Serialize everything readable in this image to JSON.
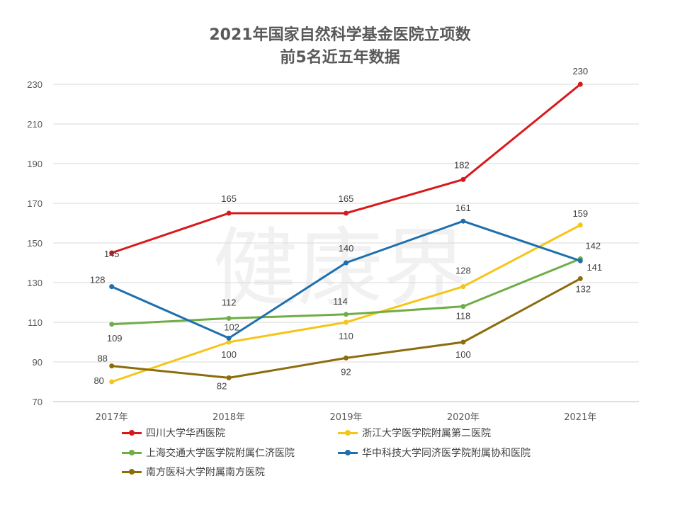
{
  "chart_data": {
    "type": "line",
    "title": [
      "2021年国家自然科学基金医院立项数",
      "前5名近五年数据"
    ],
    "watermark": "健康界",
    "categories": [
      "2017年",
      "2018年",
      "2019年",
      "2020年",
      "2021年"
    ],
    "ylim": [
      70,
      230
    ],
    "yticks": [
      70,
      90,
      110,
      130,
      150,
      170,
      190,
      210,
      230
    ],
    "grid": true,
    "legend_position": "bottom",
    "series": [
      {
        "name": "四川大学华西医院",
        "color": "#d7191c",
        "values": [
          145,
          165,
          165,
          182,
          230
        ]
      },
      {
        "name": "浙江大学医学院附属第二医院",
        "color": "#f5c518",
        "values": [
          80,
          100,
          110,
          128,
          159
        ]
      },
      {
        "name": "上海交通大学医学院附属仁济医院",
        "color": "#70ad47",
        "values": [
          109,
          112,
          114,
          118,
          142
        ]
      },
      {
        "name": "华中科技大学同济医学院附属协和医院",
        "color": "#1f6fad",
        "values": [
          128,
          102,
          140,
          161,
          141
        ]
      },
      {
        "name": "南方医科大学附属南方医院",
        "color": "#8c6d0c",
        "values": [
          88,
          82,
          92,
          100,
          132
        ]
      }
    ]
  }
}
